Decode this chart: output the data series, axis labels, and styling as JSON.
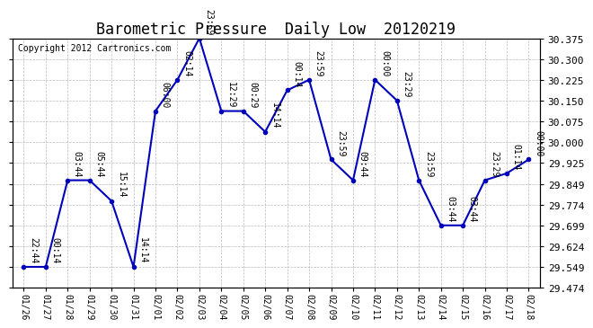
{
  "title": "Barometric Pressure  Daily Low  20120219",
  "copyright": "Copyright 2012 Cartronics.com",
  "x_labels": [
    "01/26",
    "01/27",
    "01/28",
    "01/29",
    "01/30",
    "01/31",
    "02/01",
    "02/02",
    "02/03",
    "02/04",
    "02/05",
    "02/06",
    "02/07",
    "02/08",
    "02/09",
    "02/10",
    "02/11",
    "02/12",
    "02/13",
    "02/14",
    "02/15",
    "02/16",
    "02/17",
    "02/18"
  ],
  "y_values": [
    29.549,
    29.549,
    29.862,
    29.862,
    29.787,
    29.549,
    30.112,
    30.225,
    30.375,
    30.112,
    30.112,
    30.037,
    30.187,
    30.225,
    29.937,
    29.862,
    30.225,
    30.15,
    29.862,
    29.699,
    29.699,
    29.862,
    29.887,
    29.937
  ],
  "point_labels": [
    "22:44",
    "00:14",
    "03:44",
    "05:44",
    "15:14",
    "14:14",
    "06:00",
    "02:14",
    "23:59",
    "12:29",
    "00:29",
    "14:14",
    "00:14",
    "23:59",
    "23:59",
    "09:44",
    "00:00",
    "23:29",
    "23:59",
    "03:44",
    "03:44",
    "23:29",
    "01:14",
    "00:00"
  ],
  "ylim_min": 29.474,
  "ylim_max": 30.375,
  "yticks": [
    29.474,
    29.549,
    29.624,
    29.699,
    29.774,
    29.849,
    29.925,
    30.0,
    30.075,
    30.15,
    30.225,
    30.3,
    30.375
  ],
  "line_color": "#0000bb",
  "marker_color": "#0000bb",
  "bg_color": "#ffffff",
  "grid_color": "#bbbbbb",
  "title_fontsize": 12,
  "copyright_fontsize": 7,
  "label_fontsize": 7
}
